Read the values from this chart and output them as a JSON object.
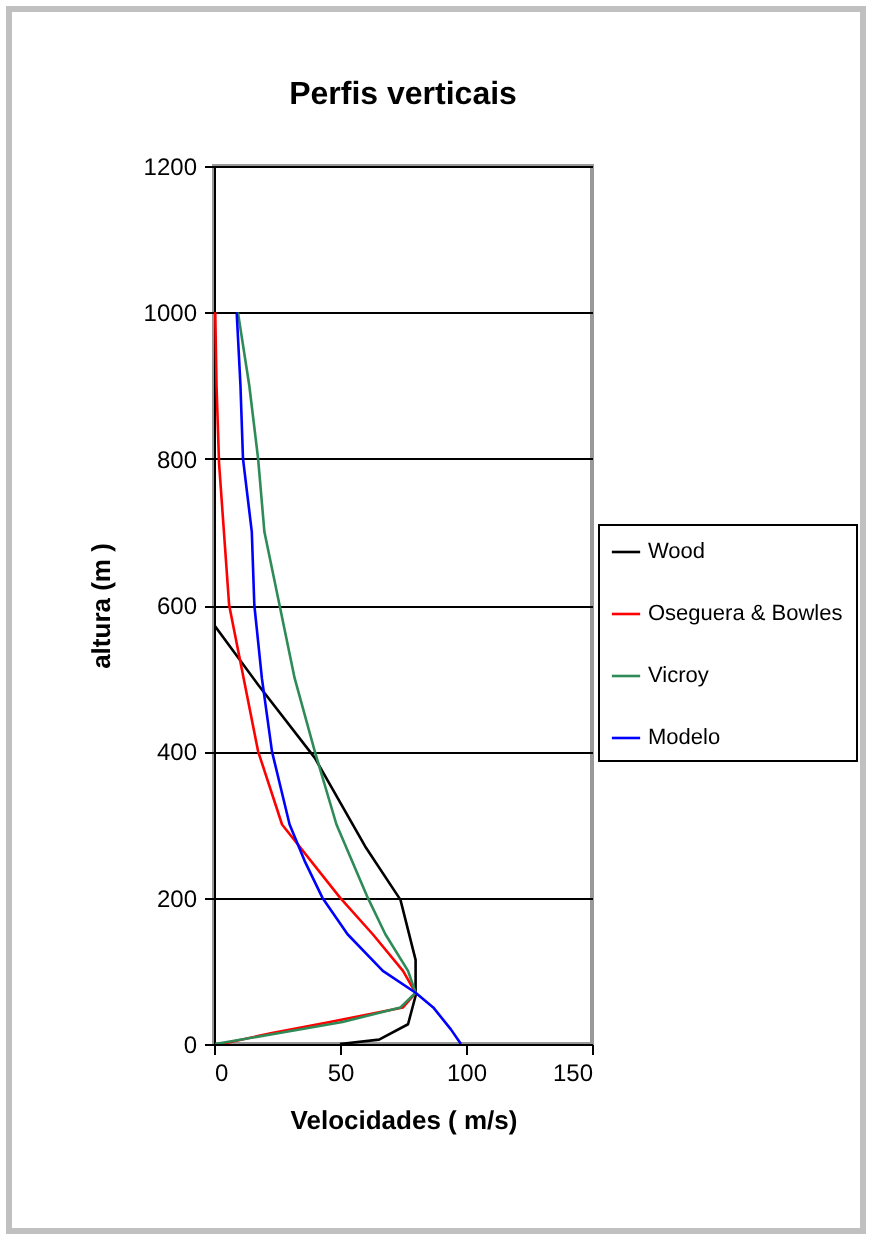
{
  "chart_data": {
    "type": "line",
    "title": "Perfis verticais",
    "xlabel": "Velocidades ( m/s)",
    "ylabel": "altura (m )",
    "xlim": [
      0,
      150
    ],
    "xticks": [
      0,
      50,
      100,
      150
    ],
    "ylim": [
      0,
      1200
    ],
    "yticks": [
      0,
      200,
      400,
      600,
      800,
      1000,
      1200
    ],
    "grid": "y",
    "legend": "right",
    "marker": "none",
    "line_style": "solid",
    "series": [
      {
        "name": "Wood",
        "color": "#000000",
        "x": [
          50,
          65.5,
          77,
          80,
          80,
          74,
          60,
          40,
          17.5,
          0
        ],
        "values": [
          0,
          6,
          27,
          66,
          115,
          197,
          270,
          391,
          491,
          573
        ]
      },
      {
        "name": "Oseguera & Bowles",
        "color": "#ff0000",
        "x": [
          3,
          23,
          46,
          75,
          80,
          75,
          63,
          50,
          27,
          17.5,
          6,
          2,
          1,
          0.5
        ],
        "values": [
          0,
          15,
          30,
          50,
          70,
          100,
          150,
          200,
          300,
          400,
          600,
          794,
          900,
          1000
        ]
      },
      {
        "name": "Vicroy",
        "color": "#2e8b57",
        "x": [
          0.5,
          26,
          51,
          74,
          80,
          77,
          68,
          61,
          48.6,
          40,
          32,
          26,
          20,
          17.5,
          14,
          9.5
        ],
        "values": [
          0,
          15,
          30,
          50,
          70,
          100,
          150,
          200,
          300,
          400,
          500,
          600,
          700,
          800,
          900,
          1000
        ]
      },
      {
        "name": "Modelo",
        "color": "#0000ff",
        "x": [
          98,
          94,
          87,
          80,
          67,
          53,
          43,
          36,
          30,
          23,
          19,
          16,
          15,
          11.5,
          10.5,
          9
        ],
        "values": [
          0,
          20,
          50,
          70,
          100,
          150,
          200,
          250,
          300,
          400,
          500,
          600,
          700,
          800,
          900,
          1000
        ]
      }
    ]
  }
}
